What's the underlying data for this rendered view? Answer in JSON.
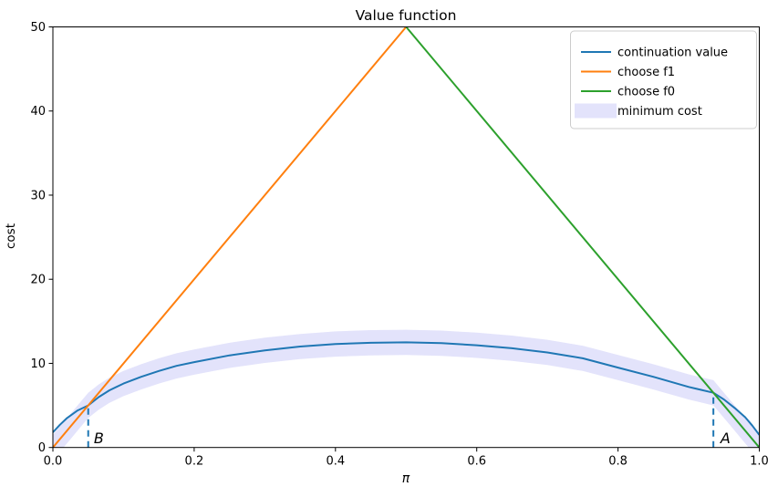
{
  "chart_data": {
    "type": "line",
    "title": "Value function",
    "xlabel": "π",
    "ylabel": "cost",
    "xlim": [
      0.0,
      1.0
    ],
    "ylim": [
      0,
      50
    ],
    "xticks": [
      0.0,
      0.2,
      0.4,
      0.6,
      0.8,
      1.0
    ],
    "xtick_labels": [
      "0.0",
      "0.2",
      "0.4",
      "0.6",
      "0.8",
      "1.0"
    ],
    "yticks": [
      0,
      10,
      20,
      30,
      40,
      50
    ],
    "ytick_labels": [
      "0",
      "10",
      "20",
      "30",
      "40",
      "50"
    ],
    "grid": false,
    "legend_position": "upper right",
    "series": [
      {
        "name": "continuation value",
        "color": "#1f77b4",
        "x": [
          0,
          0.01,
          0.02,
          0.035,
          0.05,
          0.065,
          0.08,
          0.1,
          0.125,
          0.15,
          0.175,
          0.2,
          0.25,
          0.3,
          0.35,
          0.4,
          0.45,
          0.5,
          0.55,
          0.6,
          0.65,
          0.7,
          0.75,
          0.8,
          0.85,
          0.9,
          0.935,
          0.95,
          0.965,
          0.98,
          0.99,
          1.0
        ],
        "y": [
          1.8,
          2.7,
          3.5,
          4.4,
          5.0,
          6.0,
          6.8,
          7.6,
          8.4,
          9.1,
          9.7,
          10.15,
          10.95,
          11.55,
          12.0,
          12.3,
          12.45,
          12.5,
          12.4,
          12.15,
          11.8,
          11.3,
          10.6,
          9.5,
          8.4,
          7.2,
          6.5,
          5.7,
          4.7,
          3.6,
          2.6,
          1.5
        ]
      },
      {
        "name": "choose f1",
        "color": "#ff7f0e",
        "x": [
          0,
          0.5
        ],
        "y": [
          0,
          50
        ]
      },
      {
        "name": "choose f0",
        "color": "#2ca02c",
        "x": [
          0.5,
          1.0
        ],
        "y": [
          50,
          0
        ]
      }
    ],
    "band": {
      "name": "minimum cost",
      "color": "#e3e3fb",
      "halfwidth": 1.5,
      "x": [
        0,
        0.0125,
        0.025,
        0.0375,
        0.05,
        0.065,
        0.08,
        0.1,
        0.125,
        0.15,
        0.175,
        0.2,
        0.25,
        0.3,
        0.35,
        0.4,
        0.45,
        0.5,
        0.55,
        0.6,
        0.65,
        0.7,
        0.75,
        0.8,
        0.85,
        0.9,
        0.935,
        0.95,
        0.9625,
        0.975,
        0.9875,
        1.0
      ],
      "y": [
        0,
        1.25,
        2.5,
        3.75,
        5.0,
        6.0,
        6.8,
        7.6,
        8.4,
        9.1,
        9.7,
        10.15,
        10.95,
        11.55,
        12.0,
        12.3,
        12.45,
        12.5,
        12.4,
        12.15,
        11.8,
        11.3,
        10.6,
        9.5,
        8.4,
        7.2,
        6.5,
        5.0,
        3.75,
        2.5,
        1.25,
        0
      ]
    },
    "vlines": [
      {
        "name": "B-threshold",
        "x": 0.05,
        "y0": 0,
        "y1": 5.0,
        "color": "#1f77b4",
        "style": "dashed"
      },
      {
        "name": "A-threshold",
        "x": 0.935,
        "y0": 0,
        "y1": 6.5,
        "color": "#1f77b4",
        "style": "dashed"
      }
    ],
    "annotations": [
      {
        "text": "B",
        "x": 0.058,
        "y": 0.5,
        "style": "italic"
      },
      {
        "text": "A",
        "x": 0.945,
        "y": 0.5,
        "style": "italic"
      }
    ],
    "legend_entries": [
      "continuation value",
      "choose f1",
      "choose f0",
      "minimum cost"
    ]
  }
}
